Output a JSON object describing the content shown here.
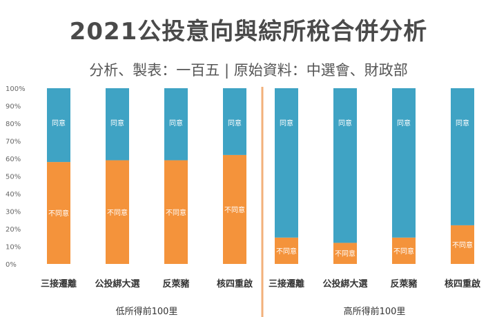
{
  "title": "2021公投意向與綜所稅合併分析",
  "subtitle": "分析、製表：一百五 | 原始資料：中選會、財政部",
  "chart_data": {
    "type": "bar",
    "stacked": true,
    "percent": true,
    "ylim": [
      0,
      100
    ],
    "yticks": [
      "0%",
      "10%",
      "20%",
      "30%",
      "40%",
      "50%",
      "60%",
      "70%",
      "80%",
      "90%",
      "100%"
    ],
    "groups": [
      {
        "label": "低所得前100里",
        "categories": [
          "三接遷離",
          "公投綁大選",
          "反萊豬",
          "核四重啟"
        ],
        "series": [
          {
            "name": "不同意",
            "values": [
              58,
              59,
              59,
              62
            ],
            "color": "#f4933b"
          },
          {
            "name": "同意",
            "values": [
              42,
              41,
              41,
              38
            ],
            "color": "#3fa3c4"
          }
        ]
      },
      {
        "label": "高所得前100里",
        "categories": [
          "三接遷離",
          "公投綁大選",
          "反萊豬",
          "核四重啟"
        ],
        "series": [
          {
            "name": "不同意",
            "values": [
              15,
              12,
              15,
              22
            ],
            "color": "#f4933b"
          },
          {
            "name": "同意",
            "values": [
              85,
              88,
              85,
              78
            ],
            "color": "#3fa3c4"
          }
        ]
      }
    ],
    "divider_color": "#f2b07a"
  }
}
